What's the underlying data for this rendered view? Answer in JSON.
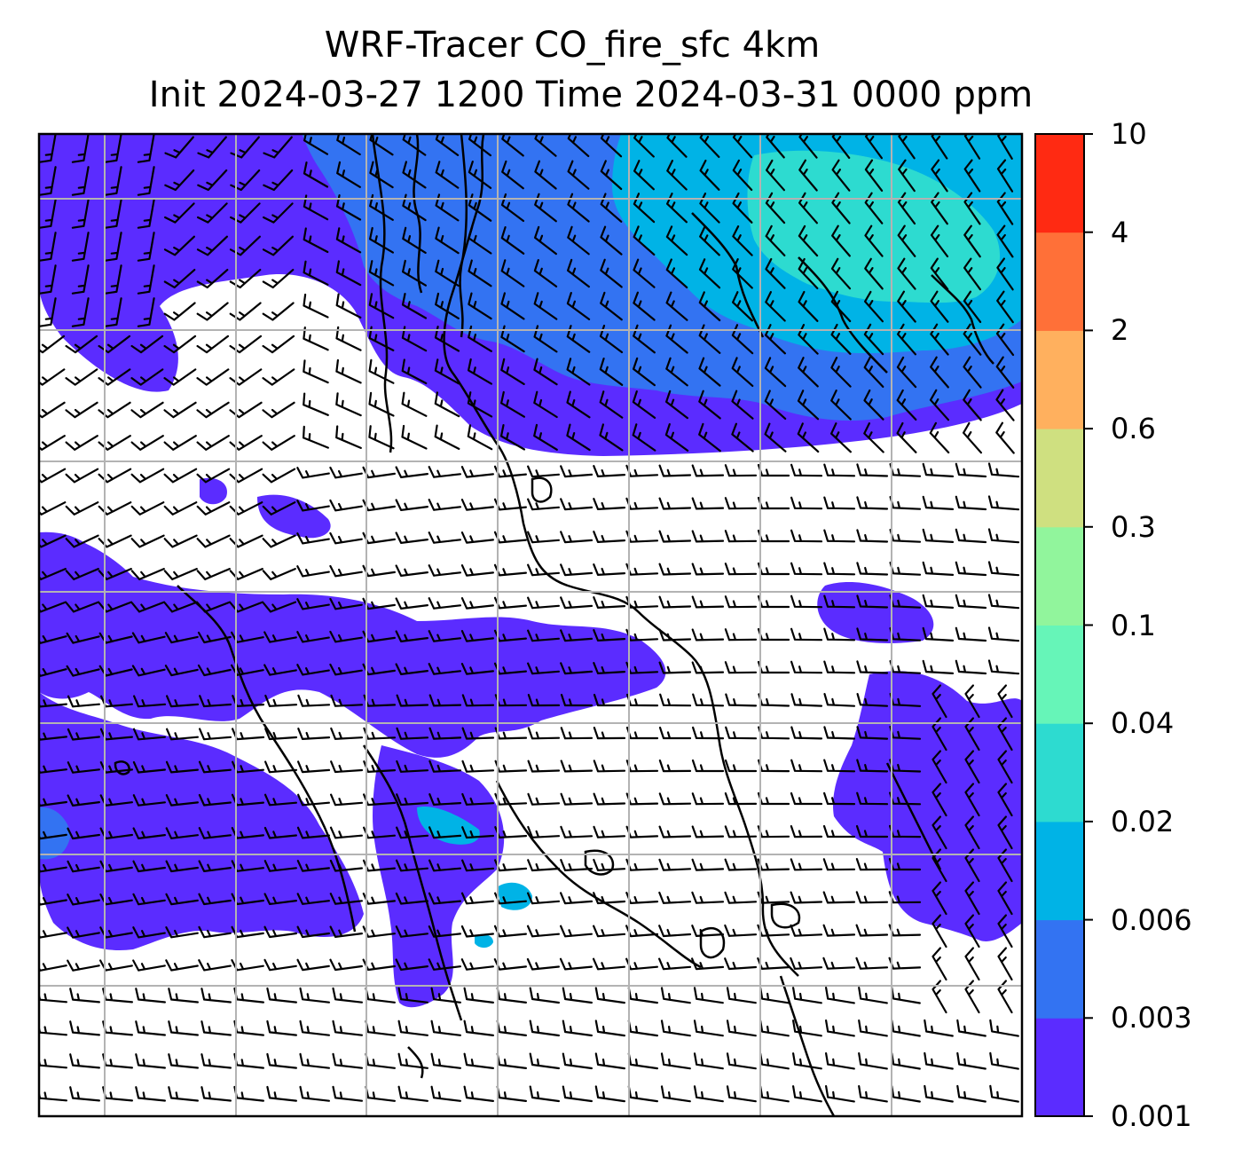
{
  "title": {
    "line1": "WRF-Tracer CO_fire_sfc 4km",
    "line2": "Init 2024-03-27 1200 Time 2024-03-31 0000 ppm"
  },
  "colorbar": {
    "levels": [
      "0.001",
      "0.003",
      "0.006",
      "0.02",
      "0.04",
      "0.1",
      "0.3",
      "0.6",
      "2",
      "4",
      "10"
    ],
    "colors": [
      "#5b2cff",
      "#3373f2",
      "#00b3e6",
      "#2ddbd0",
      "#66f5b8",
      "#91f59c",
      "#cfe080",
      "#ffb05e",
      "#ff7038",
      "#ff2a12"
    ]
  },
  "map": {
    "field": "CO_fire_sfc",
    "unit": "ppm",
    "gridlines": true,
    "wind_barbs": true,
    "coastlines": true
  }
}
